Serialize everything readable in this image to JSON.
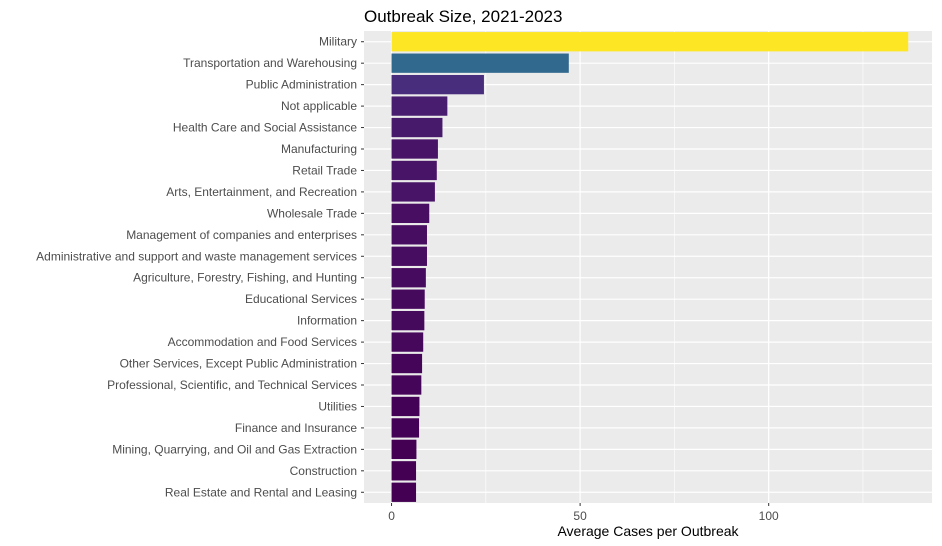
{
  "chart_data": {
    "type": "bar",
    "orientation": "horizontal",
    "title": "Outbreak Size, 2021-2023",
    "xlabel": "Average Cases per Outbreak",
    "ylabel": "",
    "xlim": [
      -7.3,
      143.3
    ],
    "xticks": [
      0,
      50,
      100
    ],
    "grid": true,
    "legend": "none",
    "categories": [
      "Military",
      "Transportation and Warehousing",
      "Public Administration",
      "Not applicable",
      "Health Care and Social Assistance",
      "Manufacturing",
      "Retail Trade",
      "Arts, Entertainment, and Recreation",
      "Wholesale Trade",
      "Management of companies and enterprises",
      "Administrative and support and waste management services",
      "Agriculture, Forestry, Fishing, and Hunting",
      "Educational Services",
      "Information",
      "Accommodation and Food Services",
      "Other Services, Except Public Administration",
      "Professional, Scientific, and Technical Services",
      "Utilities",
      "Finance and Insurance",
      "Mining, Quarrying, and Oil and Gas Extraction",
      "Construction",
      "Real Estate and Rental and Leasing"
    ],
    "values": [
      137,
      47,
      24.5,
      14.8,
      13.5,
      12.3,
      12,
      11.5,
      10,
      9.4,
      9.4,
      9.1,
      8.8,
      8.7,
      8.4,
      8.1,
      7.9,
      7.4,
      7.3,
      6.6,
      6.5,
      6.5
    ],
    "colors": [
      "#fde725",
      "#31688e",
      "#472d7b",
      "#481c6e",
      "#481a6c",
      "#481467",
      "#481467",
      "#481467",
      "#470e61",
      "#470d60",
      "#470d60",
      "#460b5e",
      "#460a5d",
      "#460a5d",
      "#45085b",
      "#450559",
      "#450559",
      "#440256",
      "#440256",
      "#440154",
      "#440154",
      "#440154"
    ],
    "panel_background": "#ebebeb",
    "grid_color": "#ffffff"
  }
}
